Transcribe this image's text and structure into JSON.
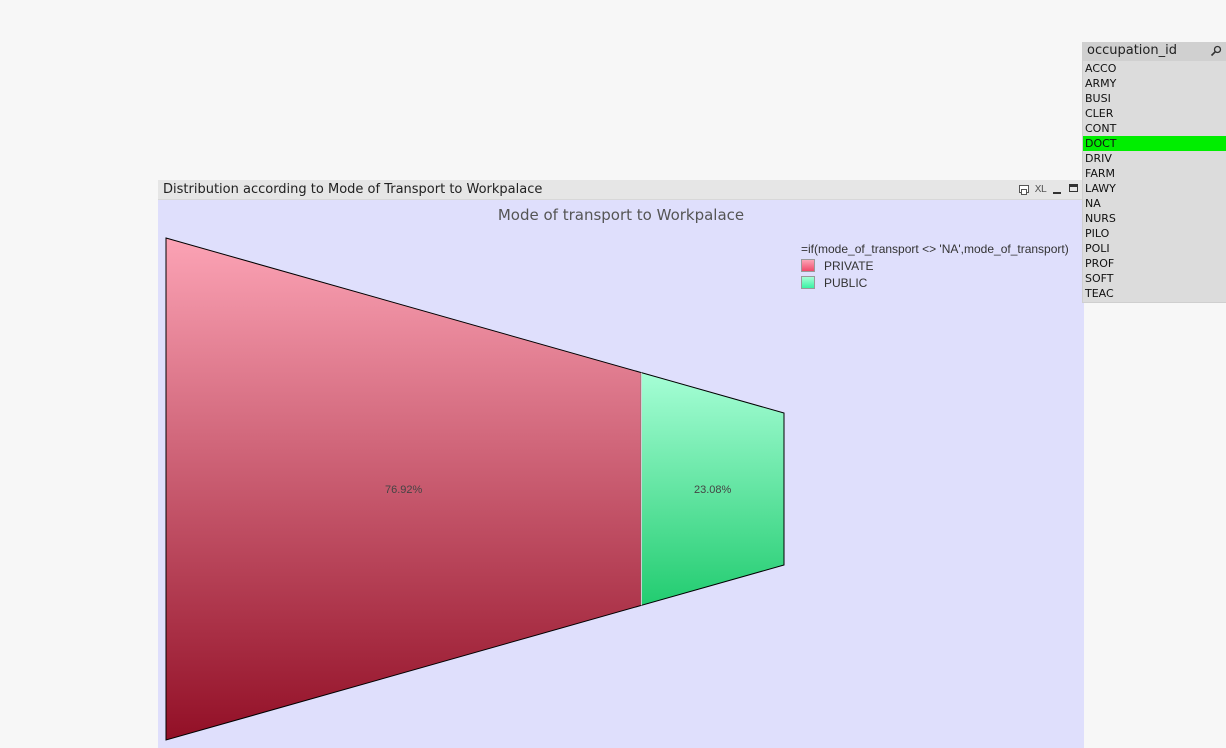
{
  "chart_object": {
    "caption": "Distribution according to Mode of Transport to Workpalace",
    "icons": {
      "print": "print-icon",
      "xl_label": "XL",
      "minimize": "minimize-icon",
      "maximize": "maximize-icon"
    }
  },
  "chart_data": {
    "type": "funnel",
    "title": "Mode of transport to Workpalace",
    "legend_title": "=if(mode_of_transport <> 'NA',mode_of_transport)",
    "legend_position": "top-right",
    "categories": [
      "PRIVATE",
      "PUBLIC"
    ],
    "values": [
      76.92,
      23.08
    ],
    "data_labels": [
      "76.92%",
      "23.08%"
    ],
    "colors": {
      "PRIVATE": {
        "top": "#fca3b5",
        "bottom": "#920f26",
        "legend": "#f04a6a"
      },
      "PUBLIC": {
        "top": "#a6fed6",
        "bottom": "#22cc70",
        "legend": "#3af2a4"
      }
    }
  },
  "listbox": {
    "title": "occupation_id",
    "search_icon": "search-icon",
    "items": [
      {
        "label": "ACCO",
        "selected": false
      },
      {
        "label": "ARMY",
        "selected": false
      },
      {
        "label": "BUSI",
        "selected": false
      },
      {
        "label": "CLER",
        "selected": false
      },
      {
        "label": "CONT",
        "selected": false
      },
      {
        "label": "DOCT",
        "selected": true
      },
      {
        "label": "DRIV",
        "selected": false
      },
      {
        "label": "FARM",
        "selected": false
      },
      {
        "label": "LAWY",
        "selected": false
      },
      {
        "label": "NA",
        "selected": false
      },
      {
        "label": "NURS",
        "selected": false
      },
      {
        "label": "PILO",
        "selected": false
      },
      {
        "label": "POLI",
        "selected": false
      },
      {
        "label": "PROF",
        "selected": false
      },
      {
        "label": "SOFT",
        "selected": false
      },
      {
        "label": "TEAC",
        "selected": false
      }
    ],
    "selected_color": "#00ee00"
  }
}
